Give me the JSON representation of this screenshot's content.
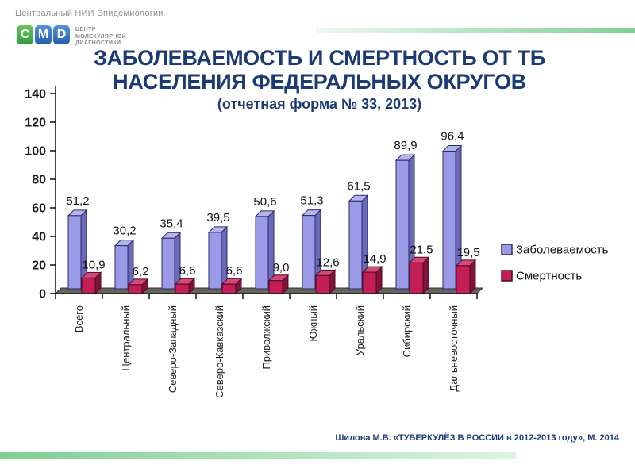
{
  "header": {
    "org": "Центральный НИИ Эпидемиологии",
    "logo": {
      "letters": [
        "C",
        "M",
        "D"
      ],
      "tagline_lines": [
        "ЦЕНТР",
        "МОЛЕКУЛЯРНОЙ",
        "ДИАГНОСТИКИ"
      ]
    }
  },
  "title": {
    "line1": "ЗАБОЛЕВАЕМОСТЬ  И СМЕРТНОСТЬ ОТ ТБ",
    "line2": "НАСЕЛЕНИЯ  ФЕДЕРАЛЬНЫХ ОКРУГОВ",
    "subtitle": "(отчетная форма № 33, 2013)"
  },
  "citation": "Шилова М.В. «ТУБЕРКУЛЁЗ В РОССИИ в 2012-2013 году», М. 2014",
  "colors": {
    "title_blue": "#1c3a73",
    "incidence_face": "#9a9ae6",
    "incidence_top": "#b4b4ef",
    "incidence_side": "#6a6ab8",
    "incidence_stroke": "#2b2b66",
    "mortality_face": "#c41e56",
    "mortality_top": "#d4487a",
    "mortality_side": "#821238",
    "mortality_stroke": "#4a0a24",
    "floor": "#64645c",
    "axis": "#1a1a1a",
    "accent_green": "#7ed094"
  },
  "chart_data": {
    "type": "bar",
    "style": "3d-clustered-column",
    "title": "ЗАБОЛЕВАЕМОСТЬ И СМЕРТНОСТЬ ОТ ТБ НАСЕЛЕНИЯ ФЕДЕРАЛЬНЫХ ОКРУГОВ (отчетная форма № 33, 2013)",
    "categories": [
      "Всего",
      "Центральный",
      "Северо-Западный",
      "Северо-Кавказский",
      "Приволжский",
      "Южный",
      "Уральский",
      "Сибирский",
      "Дальневосточный"
    ],
    "series": [
      {
        "name": "Заболеваемость",
        "values": [
          51.2,
          30.2,
          35.4,
          39.5,
          50.6,
          51.3,
          61.5,
          89.9,
          96.4
        ],
        "labels": [
          "51,2",
          "30,2",
          "35,4",
          "39,5",
          "50,6",
          "51,3",
          "61,5",
          "89,9",
          "96,4"
        ]
      },
      {
        "name": "Смертность",
        "values": [
          10.9,
          6.2,
          6.6,
          6.6,
          9.0,
          12.6,
          14.9,
          21.5,
          19.5
        ],
        "labels": [
          "10,9",
          "6,2",
          "6,6",
          "6,6",
          "9,0",
          "12,6",
          "14,9",
          "21,5",
          "19,5"
        ]
      }
    ],
    "xlabel": "",
    "ylabel": "",
    "ylim": [
      0,
      140
    ],
    "yticks": [
      0,
      20,
      40,
      60,
      80,
      100,
      120,
      140
    ],
    "grid": false,
    "legend_position": "right",
    "data_labels": true
  }
}
